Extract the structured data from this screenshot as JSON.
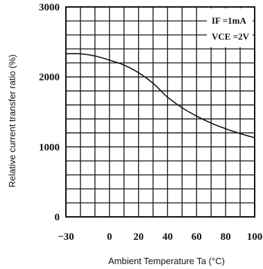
{
  "chart_data": {
    "type": "line",
    "xlabel": "Ambient Temperature Ta (°C)",
    "ylabel": "Relative current transfer ratio (%)",
    "xlim": [
      -30,
      100
    ],
    "ylim": [
      0,
      3000
    ],
    "x_ticks": [
      -30,
      0,
      20,
      40,
      60,
      80,
      100
    ],
    "x_tick_labels": [
      "−30",
      "0",
      "20",
      "40",
      "60",
      "80",
      "100"
    ],
    "y_ticks": [
      0,
      1000,
      2000,
      3000
    ],
    "y_tick_labels": [
      "0",
      "1000",
      "2000",
      "3000"
    ],
    "x_grid_minor_step": 10,
    "y_grid_minor_step": 200,
    "grid": true,
    "legend": "none",
    "annotations": [
      {
        "label": "IF =1mA",
        "placement": "top-right"
      },
      {
        "label": "VCE =2V",
        "placement": "top-right"
      }
    ],
    "series": [
      {
        "color": "#111111",
        "x": [
          -30,
          -20,
          -10,
          0,
          10,
          20,
          30,
          35,
          40,
          50,
          60,
          70,
          80,
          90,
          100
        ],
        "y": [
          2330,
          2330,
          2300,
          2240,
          2170,
          2060,
          1910,
          1810,
          1710,
          1560,
          1440,
          1340,
          1260,
          1190,
          1130
        ]
      }
    ]
  }
}
